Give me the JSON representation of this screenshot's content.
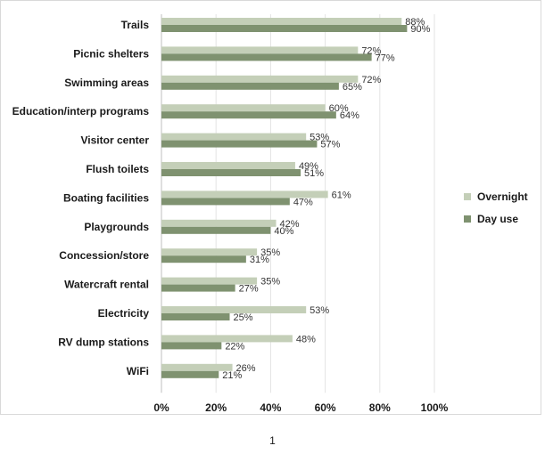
{
  "chart_data": {
    "type": "bar",
    "orientation": "horizontal",
    "categories": [
      "Trails",
      "Picnic shelters",
      "Swimming areas",
      "Education/interp programs",
      "Visitor center",
      "Flush toilets",
      "Boating facilities",
      "Playgrounds",
      "Concession/store",
      "Watercraft rental",
      "Electricity",
      "RV dump stations",
      "WiFi"
    ],
    "series": [
      {
        "name": "Overnight",
        "color": "#c4cfb8",
        "values": [
          88,
          72,
          72,
          60,
          53,
          49,
          61,
          42,
          35,
          35,
          53,
          48,
          26
        ]
      },
      {
        "name": "Day use",
        "color": "#7f9270",
        "values": [
          90,
          77,
          65,
          64,
          57,
          51,
          47,
          40,
          31,
          27,
          25,
          22,
          21
        ]
      }
    ],
    "xlim": [
      0,
      100
    ],
    "xticks": [
      "0%",
      "20%",
      "40%",
      "60%",
      "80%",
      "100%"
    ],
    "value_suffix": "%",
    "grid": "vertical",
    "legend_position": "right"
  },
  "page_number": "1"
}
